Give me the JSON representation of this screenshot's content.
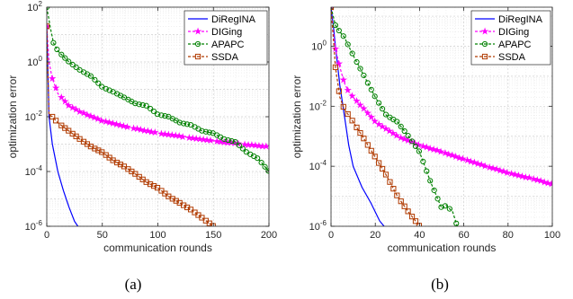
{
  "chart_data": [
    {
      "type": "line",
      "caption": "(a)",
      "xlabel": "communication rounds",
      "ylabel": "optimization error",
      "xlim": [
        0,
        200
      ],
      "ylim": [
        1e-06,
        100
      ],
      "yscale": "log",
      "xticks": [
        0,
        50,
        100,
        150,
        200
      ],
      "yticks": [
        1e-06,
        0.0001,
        0.01,
        1,
        100
      ],
      "grid": true,
      "legend_position": "top-right",
      "series": [
        {
          "name": "DiRegINA",
          "color": "#0000ff",
          "marker": "none",
          "x": [
            0,
            2,
            5,
            10,
            15,
            20,
            25,
            28
          ],
          "y": [
            20,
            0.01,
            0.001,
            0.0001,
            2e-05,
            5e-06,
            1.5e-06,
            1e-06
          ]
        },
        {
          "name": "DIGing",
          "color": "#ff00ff",
          "marker": "star",
          "x": [
            0,
            2,
            5,
            10,
            20,
            30,
            50,
            75,
            100,
            125,
            150,
            175,
            200
          ],
          "y": [
            20,
            1.0,
            0.25,
            0.07,
            0.025,
            0.015,
            0.007,
            0.004,
            0.0025,
            0.0018,
            0.0013,
            0.001,
            0.0008
          ]
        },
        {
          "name": "APAPC",
          "color": "#008000",
          "marker": "circle",
          "x": [
            0,
            3,
            6,
            10,
            20,
            30,
            40,
            50,
            60,
            70,
            80,
            90,
            100,
            110,
            120,
            130,
            140,
            150,
            160,
            170,
            180,
            190,
            200
          ],
          "y": [
            100,
            20,
            5,
            2.5,
            1.0,
            0.5,
            0.3,
            0.12,
            0.08,
            0.05,
            0.03,
            0.025,
            0.012,
            0.01,
            0.006,
            0.005,
            0.003,
            0.0025,
            0.0015,
            0.0012,
            0.0005,
            0.0003,
            0.0001
          ]
        },
        {
          "name": "SSDA",
          "color": "#b03a00",
          "marker": "square",
          "x": [
            0,
            2,
            5,
            10,
            20,
            30,
            40,
            50,
            60,
            70,
            80,
            90,
            100,
            110,
            120,
            130,
            140,
            150
          ],
          "y": [
            20,
            0.012,
            0.01,
            0.006,
            0.003,
            0.0015,
            0.0008,
            0.0005,
            0.00025,
            0.00015,
            8e-05,
            4e-05,
            2.5e-05,
            1.2e-05,
            7e-06,
            4e-06,
            2e-06,
            1e-06
          ]
        }
      ]
    },
    {
      "type": "line",
      "caption": "(b)",
      "xlabel": "communication rounds",
      "ylabel": "optimization error",
      "xlim": [
        0,
        100
      ],
      "ylim": [
        1e-06,
        20
      ],
      "yscale": "log",
      "xticks": [
        0,
        20,
        40,
        60,
        80,
        100
      ],
      "yticks": [
        1e-06,
        0.0001,
        0.01,
        1
      ],
      "grid": true,
      "legend_position": "top-right",
      "series": [
        {
          "name": "DiRegINA",
          "color": "#0000ff",
          "marker": "none",
          "x": [
            0,
            1,
            2,
            4,
            6,
            8,
            10,
            14,
            18,
            22,
            24
          ],
          "y": [
            20,
            5,
            1,
            0.05,
            0.005,
            0.0005,
            0.0001,
            2e-05,
            6e-06,
            1.5e-06,
            1e-06
          ]
        },
        {
          "name": "DIGing",
          "color": "#ff00ff",
          "marker": "star",
          "x": [
            0,
            1,
            2,
            4,
            6,
            8,
            10,
            15,
            20,
            30,
            40,
            50,
            60,
            70,
            80,
            90,
            100
          ],
          "y": [
            20,
            3,
            0.8,
            0.2,
            0.06,
            0.03,
            0.02,
            0.008,
            0.003,
            0.001,
            0.0005,
            0.0003,
            0.00017,
            0.0001,
            6e-05,
            4e-05,
            2.5e-05
          ]
        },
        {
          "name": "APAPC",
          "color": "#008000",
          "marker": "circle",
          "x": [
            0,
            1,
            2,
            4,
            6,
            8,
            10,
            15,
            20,
            25,
            30,
            35,
            40,
            45,
            50,
            52,
            55,
            57
          ],
          "y": [
            20,
            10,
            5,
            3,
            2,
            1,
            0.5,
            0.1,
            0.02,
            0.005,
            0.003,
            0.001,
            0.0003,
            3e-05,
            4e-06,
            5e-06,
            3e-06,
            1e-06
          ]
        },
        {
          "name": "SSDA",
          "color": "#b03a00",
          "marker": "square",
          "x": [
            0,
            1,
            2,
            4,
            6,
            8,
            10,
            15,
            20,
            25,
            30,
            35,
            40
          ],
          "y": [
            20,
            2,
            0.2,
            0.02,
            0.008,
            0.005,
            0.003,
            0.0008,
            0.0002,
            5e-05,
            1e-05,
            3e-06,
            1e-06
          ]
        }
      ]
    }
  ]
}
